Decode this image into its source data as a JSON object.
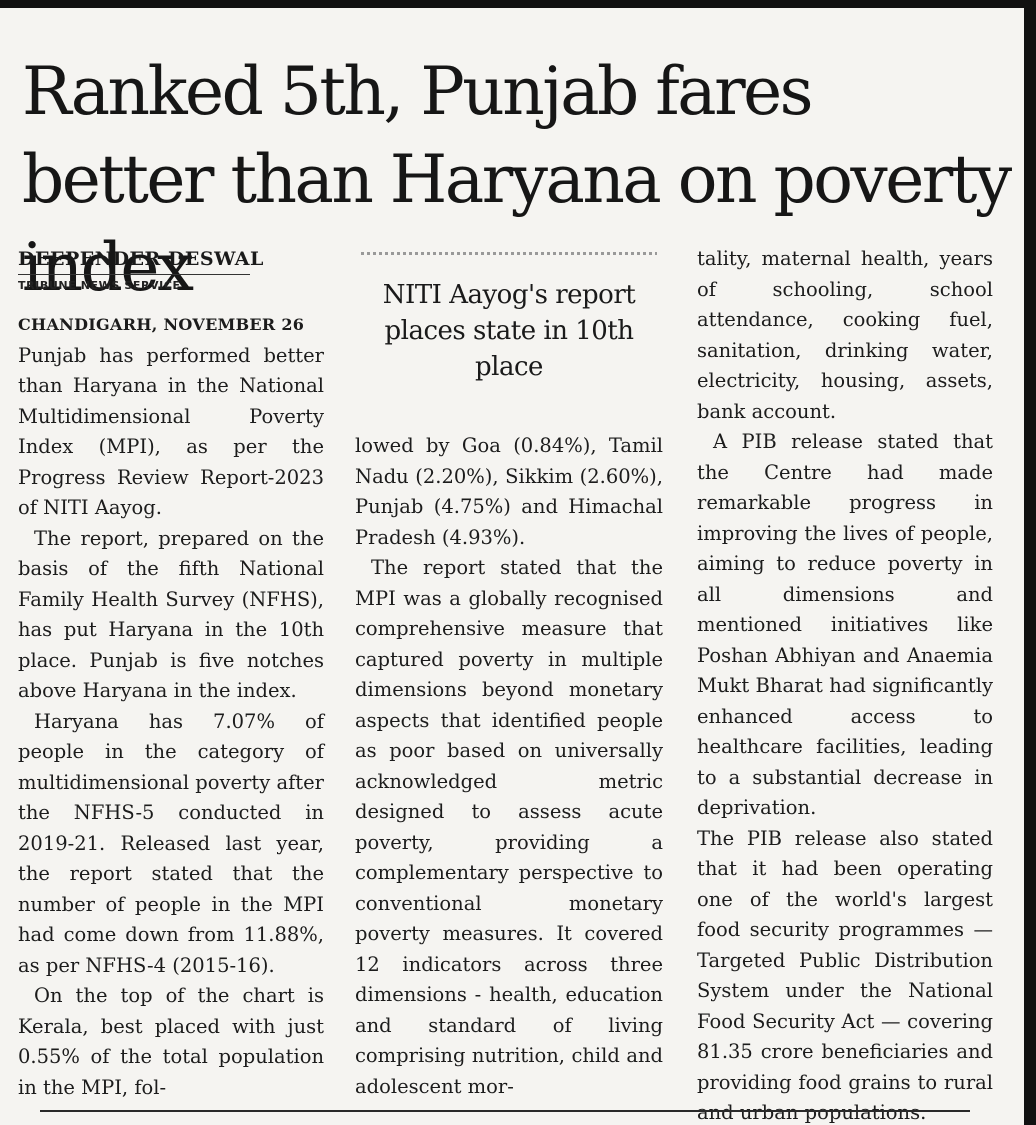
{
  "headline": "Ranked 5th, Punjab fares better than Haryana on poverty index",
  "byline": {
    "author": "DEEPENDER DESWAL",
    "service": "TRIBUNE NEWS SERVICE",
    "dateline": "CHANDIGARH, NOVEMBER 26"
  },
  "pull_quote": "NITI Aayog's report places state in 10th place",
  "paragraphs": [
    "Punjab has performed better than Haryana in the National Multidimensional Poverty Index (MPI), as per the Progress Review Report-2023 of NITI Aayog.",
    "The report, prepared on the basis of the fifth National Family Health Survey (NFHS), has put Haryana in the 10th place. Punjab is five notches above Haryana in the index.",
    "Haryana has 7.07% of people in the category of multidimensional poverty after the NFHS-5 conducted in 2019-21. Released last year, the report stated that the number of people in the MPI had come down from 11.88%, as per NFHS-4 (2015-16).",
    "On the top of the chart is Kerala, best placed with just 0.55% of the total population in the MPI, fol-",
    "lowed by Goa (0.84%), Tamil Nadu (2.20%), Sikkim (2.60%), Punjab (4.75%) and Himachal Pradesh (4.93%).",
    "The report stated that the MPI was a globally recognised comprehensive measure that captured poverty in multiple dimensions beyond monetary aspects that identified people as poor based on universally acknowledged metric designed to assess acute poverty, providing a complementary perspective to conventional monetary poverty measures. It covered 12 indicators across three dimensions - health, education and standard of living comprising nutrition, child and adolescent mor-",
    "tality, maternal health, years of schooling, school attendance, cooking fuel, sanitation, drinking water, electricity, housing, assets, bank account.",
    "A PIB release stated that the Centre had made remarkable progress in improving the lives of people, aiming to reduce poverty in all dimensions and mentioned initiatives like Poshan Abhiyan and Anaemia Mukt Bharat had significantly enhanced access to healthcare facilities, leading to a substantial decrease in deprivation.",
    "The PIB release also stated that it had been operating one of the world's largest food security programmes — Targeted Public Distribution System under the National Food Security Act — covering 81.35 crore beneficiaries and providing food grains to rural and urban populations."
  ]
}
